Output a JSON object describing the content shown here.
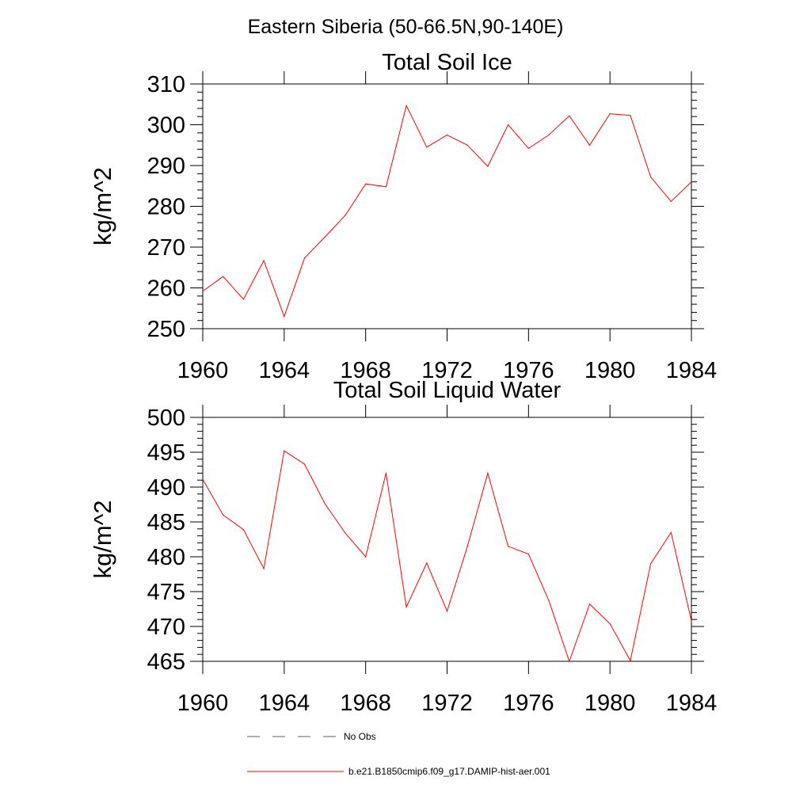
{
  "figure": {
    "title": "Eastern Siberia (50-66.5N,90-140E)"
  },
  "colors": {
    "series": "#ff0000",
    "no_obs": "#5a5a8a",
    "axis": "#000000"
  },
  "chart_data": [
    {
      "type": "line",
      "title": "Total Soil Ice",
      "xlabel": "",
      "ylabel": "kg/m^2",
      "xlim": [
        1960,
        1984
      ],
      "ylim": [
        250,
        310
      ],
      "xticks": [
        1960,
        1964,
        1968,
        1972,
        1976,
        1980,
        1984
      ],
      "yticks": [
        250,
        260,
        270,
        280,
        290,
        300,
        310
      ],
      "x": [
        1960,
        1961,
        1962,
        1963,
        1964,
        1965,
        1966,
        1967,
        1968,
        1969,
        1970,
        1971,
        1972,
        1973,
        1974,
        1975,
        1976,
        1977,
        1978,
        1979,
        1980,
        1981,
        1982,
        1983,
        1984
      ],
      "series": [
        {
          "name": "b.e21.B1850cmip6.f09_g17.DAMIP-hist-aer.001",
          "values": [
            259.2,
            262.8,
            257.2,
            266.7,
            253.0,
            267.3,
            272.5,
            277.8,
            285.5,
            284.8,
            304.7,
            294.5,
            297.5,
            295.0,
            289.8,
            300.0,
            294.2,
            297.5,
            302.2,
            295.0,
            302.7,
            302.3,
            287.2,
            281.2,
            286.0
          ]
        }
      ]
    },
    {
      "type": "line",
      "title": "Total Soil Liquid Water",
      "xlabel": "",
      "ylabel": "kg/m^2",
      "xlim": [
        1960,
        1984
      ],
      "ylim": [
        465,
        500
      ],
      "xticks": [
        1960,
        1964,
        1968,
        1972,
        1976,
        1980,
        1984
      ],
      "yticks": [
        465,
        470,
        475,
        480,
        485,
        490,
        495,
        500
      ],
      "x": [
        1960,
        1961,
        1962,
        1963,
        1964,
        1965,
        1966,
        1967,
        1968,
        1969,
        1970,
        1971,
        1972,
        1973,
        1974,
        1975,
        1976,
        1977,
        1978,
        1979,
        1980,
        1981,
        1982,
        1983,
        1984
      ],
      "series": [
        {
          "name": "b.e21.B1850cmip6.f09_g17.DAMIP-hist-aer.001",
          "values": [
            491.1,
            486.0,
            483.9,
            478.3,
            495.2,
            493.3,
            487.6,
            483.4,
            480.0,
            492.0,
            472.8,
            479.1,
            472.2,
            481.5,
            492.0,
            481.5,
            480.4,
            473.7,
            465.0,
            473.2,
            470.4,
            465.1,
            479.0,
            483.5,
            470.8
          ]
        }
      ]
    }
  ],
  "legend": {
    "items": [
      {
        "label": "No Obs",
        "style": "dashed"
      },
      {
        "label": "b.e21.B1850cmip6.f09_g17.DAMIP-hist-aer.001",
        "style": "solid"
      }
    ]
  }
}
